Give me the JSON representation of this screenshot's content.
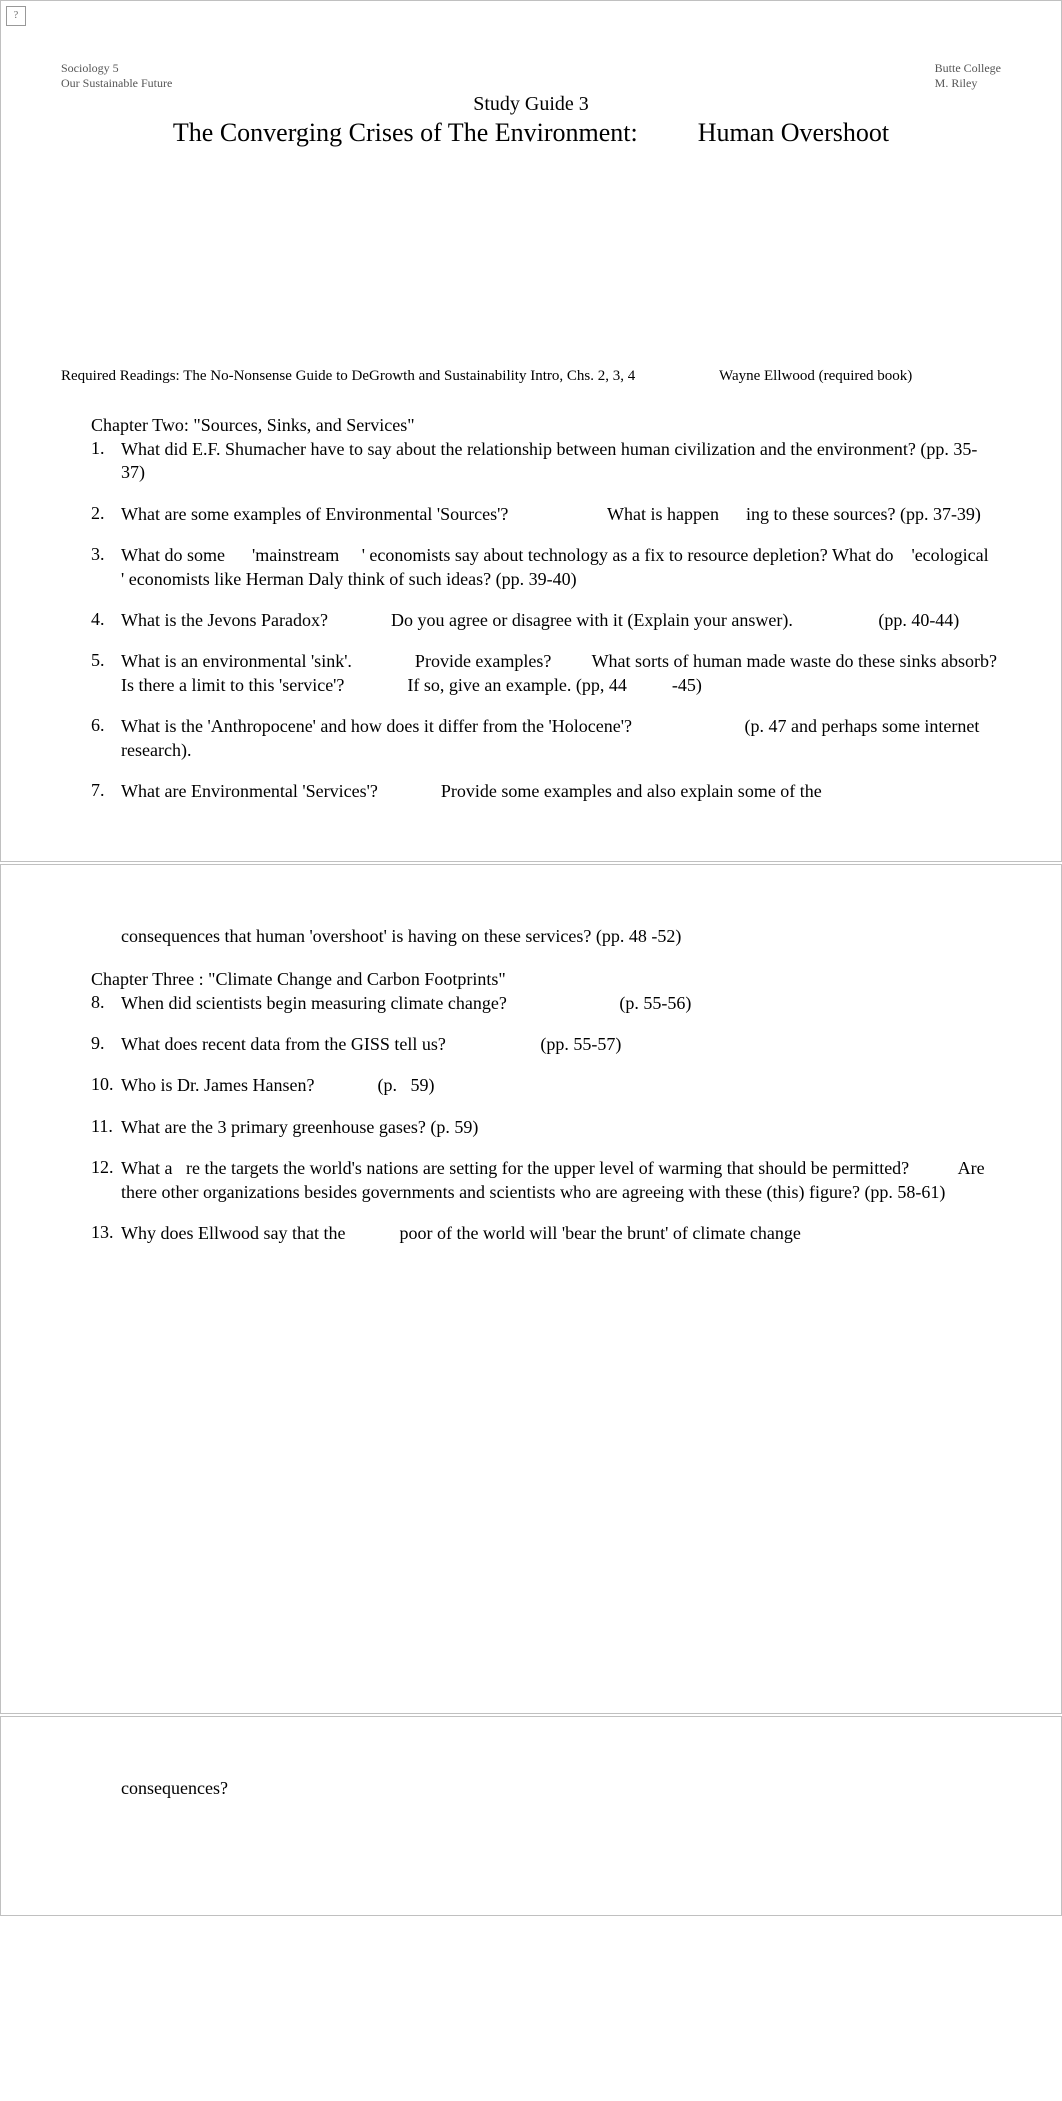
{
  "header": {
    "course": "Sociology 5",
    "course_sub": "Our Sustainable Future",
    "college": "Butte College",
    "instructor": "M. Riley"
  },
  "title": "Study Guide 3",
  "subtitle_left": "The Converging Crises of The Environment:",
  "subtitle_right": "Human Overshoot",
  "required_readings_label": "Required Readings: The No-Nonsense Guide to DeGrowth and Sustainability Intro, Chs. 2, 3, 4",
  "required_readings_author": "Wayne Ellwood (required book)",
  "chapter2_title": "Chapter Two: \"Sources, Sinks, and Services\"",
  "chapter2_questions": [
    {
      "num": "1.",
      "text": "What did E.F. Shumacher have to say about the relationship between human civilization and the environment? (pp. 35-37)"
    },
    {
      "num": "2.",
      "text": "What are some examples of Environmental 'Sources'?                      What is happen      ing to these sources? (pp. 37-39)"
    },
    {
      "num": "3.",
      "text": "What do some      'mainstream     ' economists say about technology as a fix to resource depletion? What do    'ecological   ' economists like Herman Daly think of such ideas? (pp. 39-40)"
    },
    {
      "num": "4.",
      "text": "What is the Jevons Paradox?              Do you agree or disagree with it (Explain your answer).                   (pp. 40-44)"
    },
    {
      "num": "5.",
      "text": "What is an environmental 'sink'.              Provide examples?         What sorts of human made waste do these sinks absorb?           Is there a limit to this 'service'?              If so, give an example. (pp, 44          -45)"
    },
    {
      "num": "6.",
      "text": "What is the 'Anthropocene' and how does it differ from the 'Holocene'?                         (p. 47 and perhaps some internet research)."
    },
    {
      "num": "7.",
      "text": "What are Environmental 'Services'?              Provide some examples and also explain some of the"
    }
  ],
  "q7_continuation": "consequences that human 'overshoot' is having on these services? (pp. 48                                  -52)",
  "chapter3_title": "Chapter Three       : \"Climate Change and Carbon Footprints\"",
  "chapter3_questions": [
    {
      "num": "8.",
      "text": "When did scientists begin measuring climate change?                         (p. 55-56)"
    },
    {
      "num": "9.",
      "text": "What does recent data from the GISS tell us?                     (pp. 55-57)"
    },
    {
      "num": "10.",
      "text": "Who is Dr. James Hansen?              (p.   59)"
    },
    {
      "num": "11.",
      "text": "What are the 3 primary greenhouse gases? (p. 59)"
    },
    {
      "num": "12.",
      "text": "What a   re the targets the world's nations are setting for the upper level of warming that should be permitted?           Are there other organizations besides governments and scientists who are agreeing with these (this) figure? (pp. 58-61)"
    },
    {
      "num": "13.",
      "text": "Why does Ellwood say that the            poor of the world will 'bear the brunt' of climate change"
    }
  ],
  "q13_continuation": "consequences?",
  "broken_img_alt": "?"
}
